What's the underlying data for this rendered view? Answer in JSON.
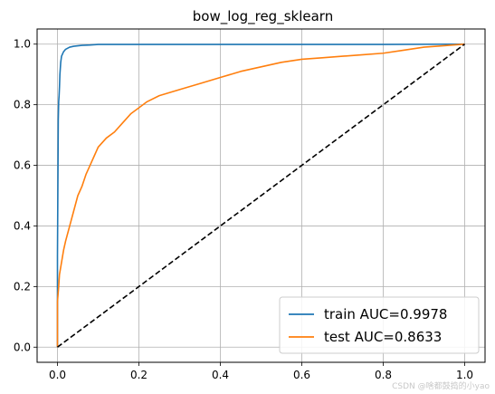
{
  "watermark": "CSDN @啥都鼓捣的小yao",
  "chart_data": {
    "type": "line",
    "title": "bow_log_reg_sklearn",
    "xlabel": "",
    "ylabel": "",
    "xlim": [
      -0.05,
      1.05
    ],
    "ylim": [
      -0.05,
      1.05
    ],
    "xticks": [
      0.0,
      0.2,
      0.4,
      0.6,
      0.8,
      1.0
    ],
    "yticks": [
      0.0,
      0.2,
      0.4,
      0.6,
      0.8,
      1.0
    ],
    "xtick_labels": [
      "0.0",
      "0.2",
      "0.4",
      "0.6",
      "0.8",
      "1.0"
    ],
    "ytick_labels": [
      "0.0",
      "0.2",
      "0.4",
      "0.6",
      "0.8",
      "1.0"
    ],
    "grid": true,
    "legend_position": "bottom-right",
    "series": [
      {
        "name": "train AUC=0.9978",
        "color": "#1f77b4",
        "style": "solid",
        "x": [
          0.0,
          0.0,
          0.002,
          0.003,
          0.004,
          0.005,
          0.006,
          0.008,
          0.01,
          0.015,
          0.02,
          0.03,
          0.04,
          0.06,
          0.08,
          0.1,
          0.2,
          0.4,
          0.6,
          0.8,
          1.0
        ],
        "y": [
          0.0,
          0.3,
          0.75,
          0.81,
          0.83,
          0.86,
          0.9,
          0.94,
          0.96,
          0.975,
          0.983,
          0.99,
          0.993,
          0.996,
          0.997,
          0.999,
          0.999,
          0.999,
          0.999,
          0.999,
          1.0
        ]
      },
      {
        "name": "test AUC=0.8633",
        "color": "#ff7f0e",
        "style": "solid",
        "x": [
          0.0,
          0.0,
          0.003,
          0.005,
          0.01,
          0.015,
          0.02,
          0.03,
          0.04,
          0.05,
          0.06,
          0.07,
          0.08,
          0.09,
          0.1,
          0.12,
          0.14,
          0.16,
          0.18,
          0.2,
          0.22,
          0.25,
          0.3,
          0.35,
          0.4,
          0.45,
          0.5,
          0.55,
          0.6,
          0.65,
          0.7,
          0.75,
          0.8,
          0.85,
          0.9,
          0.95,
          1.0
        ],
        "y": [
          0.0,
          0.15,
          0.2,
          0.24,
          0.28,
          0.32,
          0.35,
          0.4,
          0.45,
          0.5,
          0.53,
          0.57,
          0.6,
          0.63,
          0.66,
          0.69,
          0.71,
          0.74,
          0.77,
          0.79,
          0.81,
          0.83,
          0.85,
          0.87,
          0.89,
          0.91,
          0.925,
          0.94,
          0.95,
          0.955,
          0.96,
          0.965,
          0.97,
          0.98,
          0.99,
          0.995,
          1.0
        ]
      },
      {
        "name": "",
        "color": "#000000",
        "style": "dashed",
        "x": [
          0.0,
          1.0
        ],
        "y": [
          0.0,
          1.0
        ]
      }
    ]
  }
}
